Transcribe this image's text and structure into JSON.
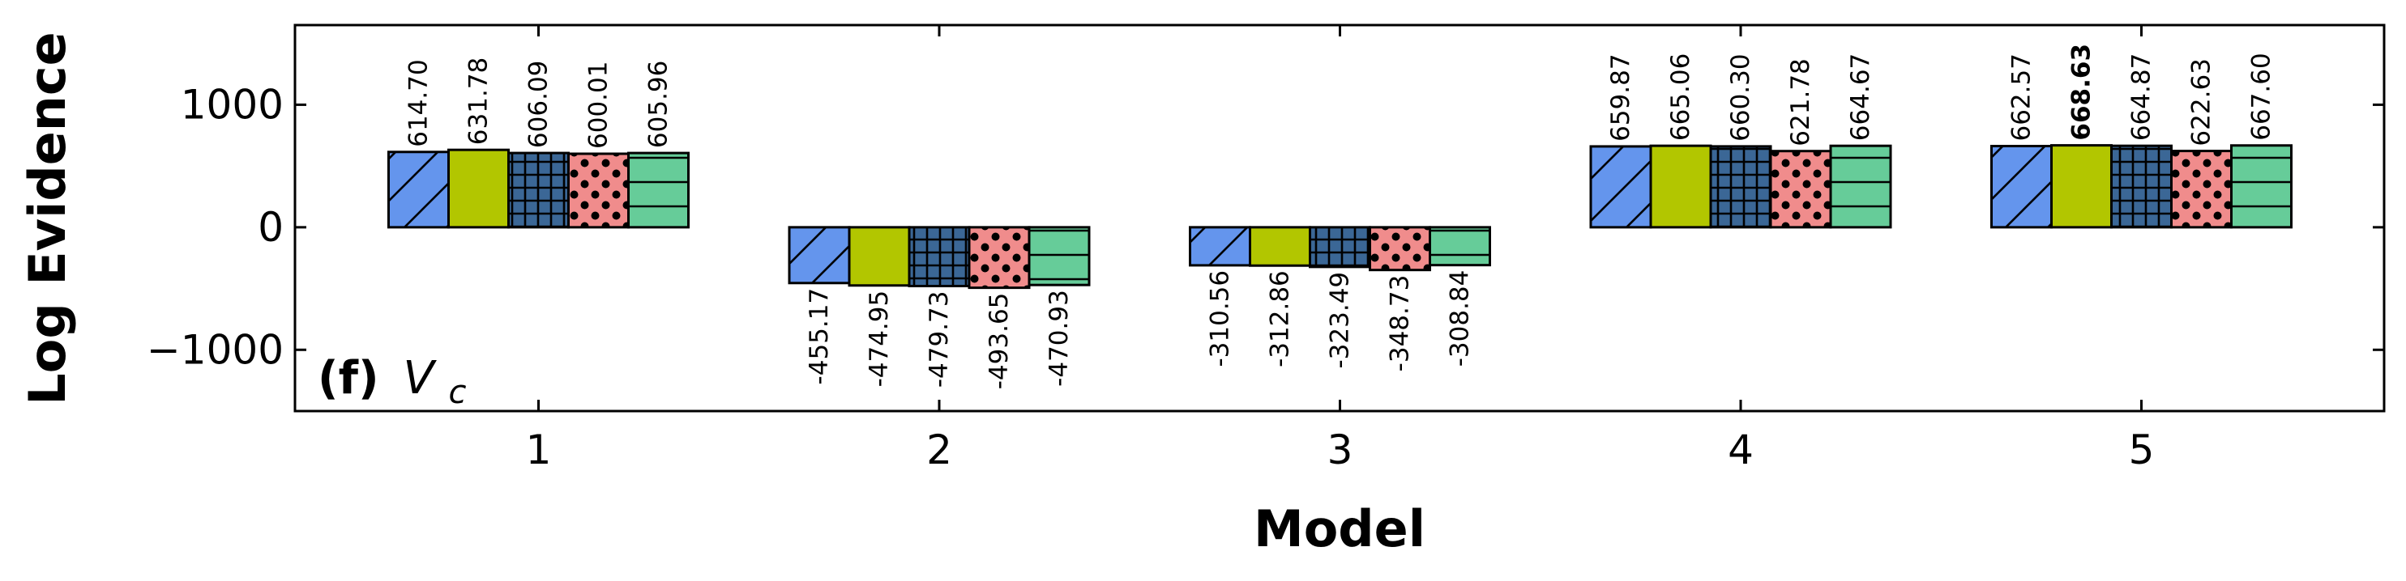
{
  "chart_data": {
    "type": "bar",
    "categories": [
      "1",
      "2",
      "3",
      "4",
      "5"
    ],
    "series": [
      {
        "values": [
          614.7,
          -455.17,
          -310.56,
          659.87,
          662.57
        ],
        "color": "#6495ED",
        "pattern": "diagonal-hatch"
      },
      {
        "values": [
          631.78,
          -474.95,
          -312.86,
          665.06,
          668.63
        ],
        "color": "#B2C600",
        "pattern": "solid"
      },
      {
        "values": [
          606.09,
          -479.73,
          -323.49,
          660.3,
          664.87
        ],
        "color": "#3B6796",
        "pattern": "grid"
      },
      {
        "values": [
          600.01,
          -493.65,
          -348.73,
          621.78,
          622.63
        ],
        "color": "#F08C8C",
        "pattern": "dots"
      },
      {
        "values": [
          605.96,
          -470.93,
          -308.84,
          664.67,
          667.6
        ],
        "color": "#66CC99",
        "pattern": "horizontal-lines"
      }
    ],
    "value_labels": [
      [
        "614.70",
        "-455.17",
        "-310.56",
        "659.87",
        "662.57"
      ],
      [
        "631.78",
        "-474.95",
        "-312.86",
        "665.06",
        "668.63"
      ],
      [
        "606.09",
        "-479.73",
        "-323.49",
        "660.30",
        "664.87"
      ],
      [
        "600.01",
        "-493.65",
        "-348.73",
        "621.78",
        "622.63"
      ],
      [
        "605.96",
        "-470.93",
        "-308.84",
        "664.67",
        "667.60"
      ]
    ],
    "highlighted_label": {
      "series_index": 1,
      "category_index": 4
    },
    "xlabel": "Model",
    "ylabel": "Log Evidence",
    "ylim": [
      -1500,
      1650
    ],
    "yticks": [
      1000,
      0,
      -1000
    ],
    "ytick_labels": [
      "1000",
      "0",
      "−1000"
    ],
    "panel_label": {
      "prefix": "(f)",
      "symbol": "V",
      "subscript": "c"
    },
    "grid": false,
    "legend": "none"
  }
}
